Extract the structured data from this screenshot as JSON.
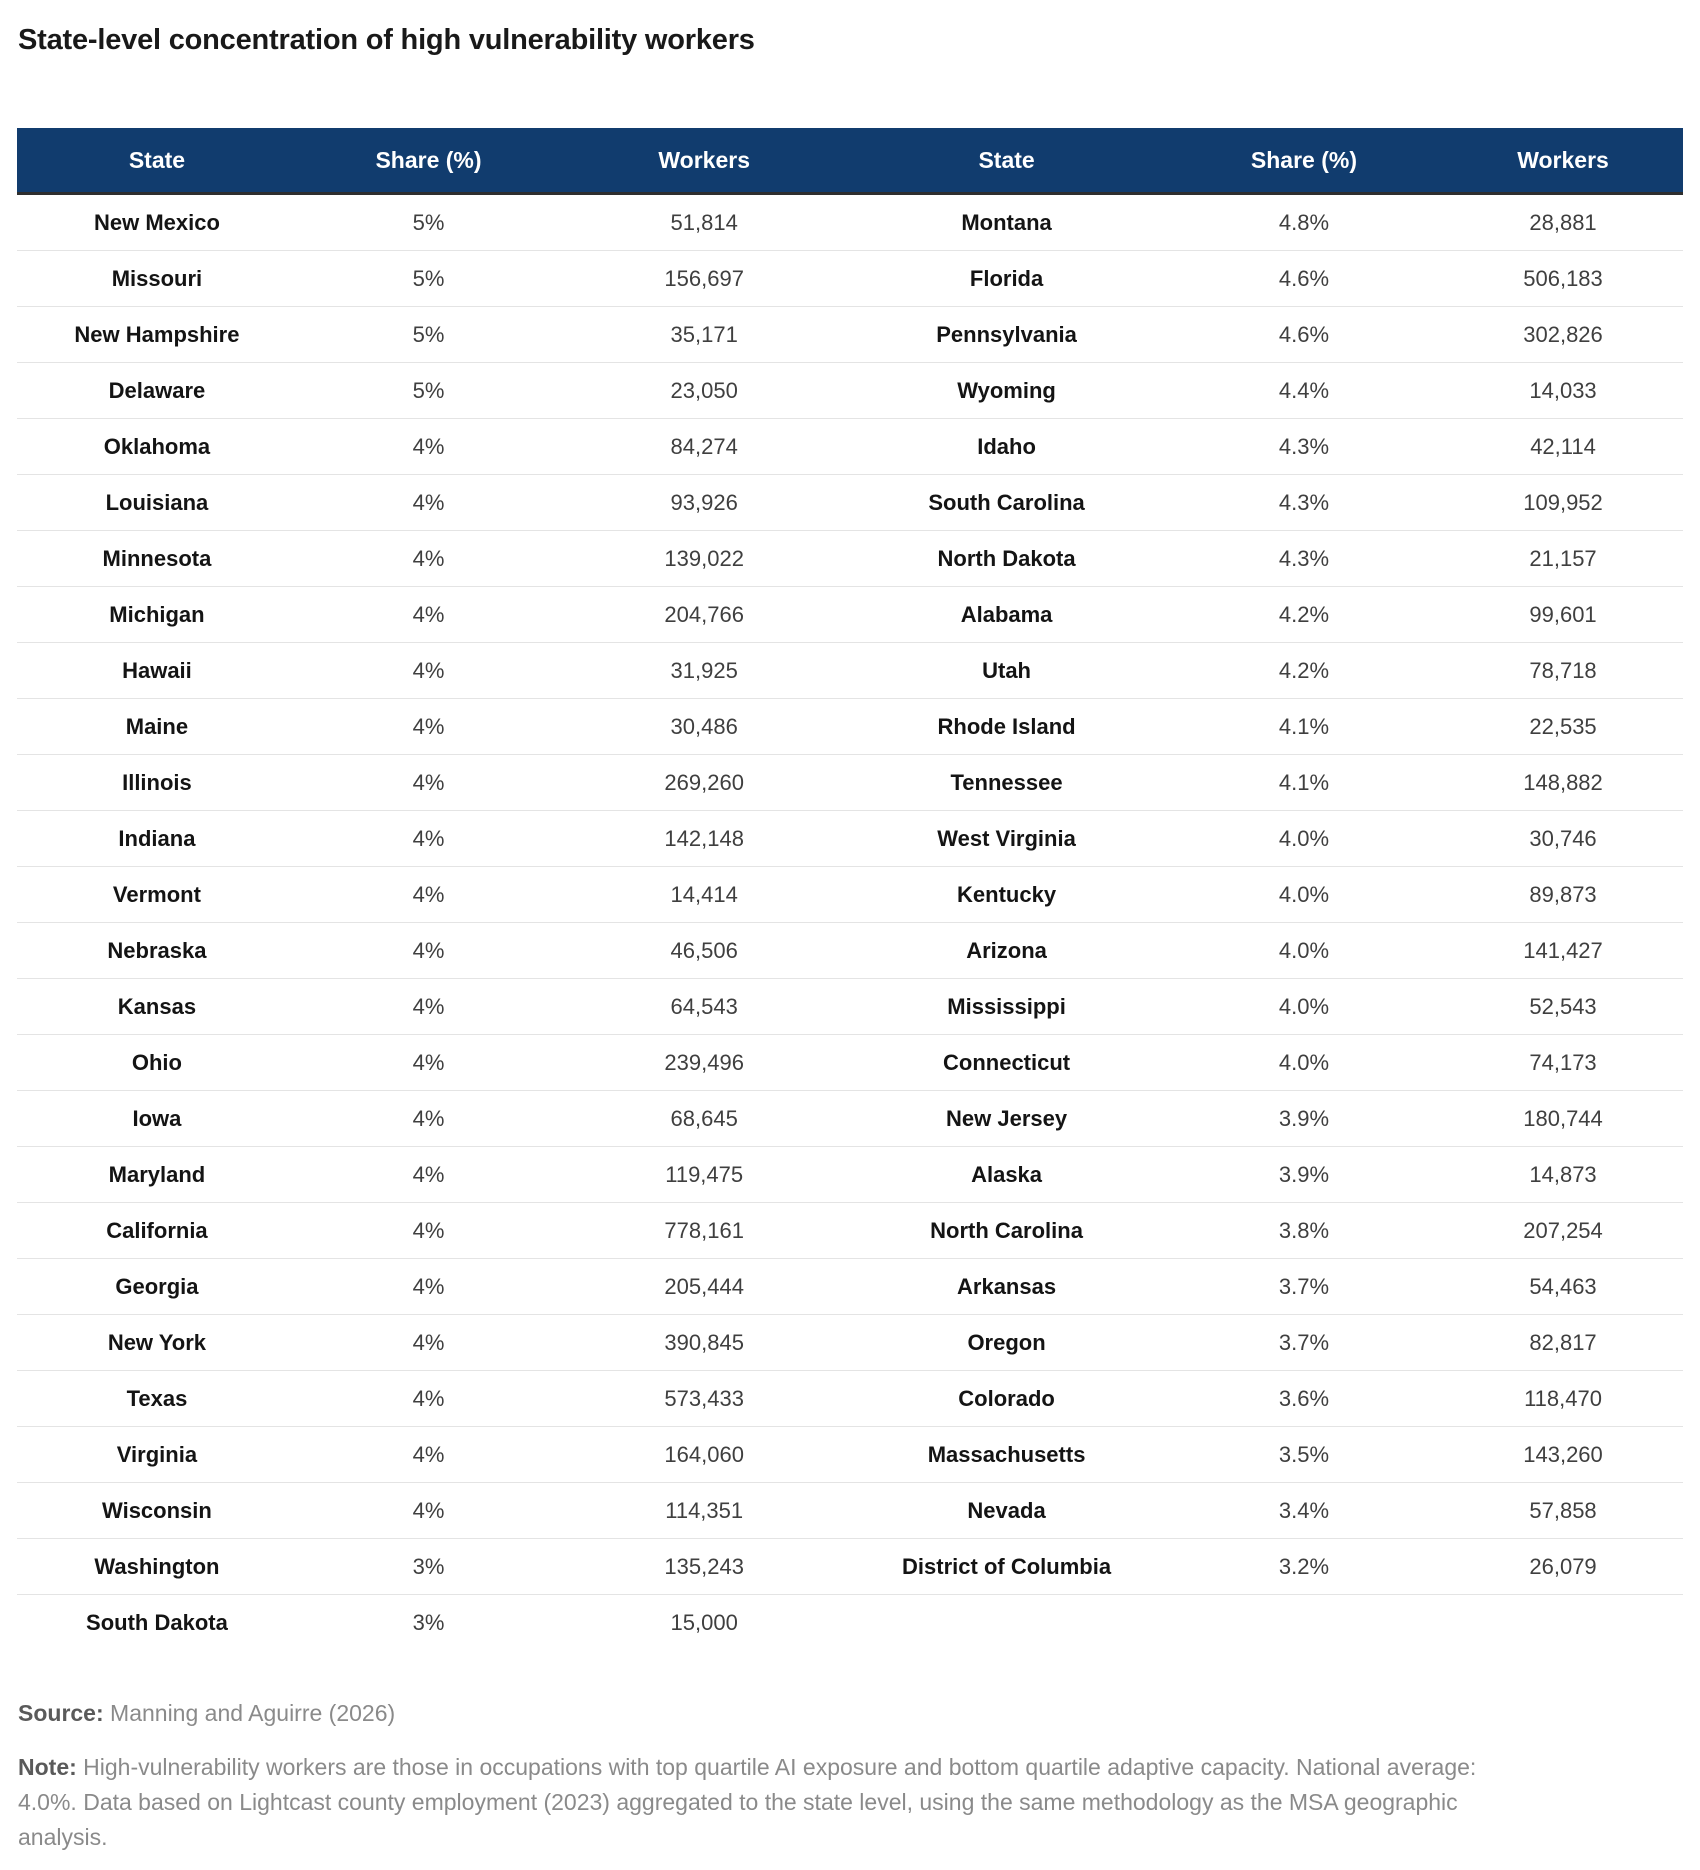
{
  "title": "State-level concentration of high vulnerability workers",
  "chart_data": {
    "type": "table",
    "title": "State-level concentration of high vulnerability workers",
    "columns": [
      "State",
      "Share (%)",
      "Workers",
      "State",
      "Share (%)",
      "Workers"
    ],
    "rows": [
      [
        "New Mexico",
        "5%",
        "51,814",
        "Montana",
        "4.8%",
        "28,881"
      ],
      [
        "Missouri",
        "5%",
        "156,697",
        "Florida",
        "4.6%",
        "506,183"
      ],
      [
        "New Hampshire",
        "5%",
        "35,171",
        "Pennsylvania",
        "4.6%",
        "302,826"
      ],
      [
        "Delaware",
        "5%",
        "23,050",
        "Wyoming",
        "4.4%",
        "14,033"
      ],
      [
        "Oklahoma",
        "4%",
        "84,274",
        "Idaho",
        "4.3%",
        "42,114"
      ],
      [
        "Louisiana",
        "4%",
        "93,926",
        "South Carolina",
        "4.3%",
        "109,952"
      ],
      [
        "Minnesota",
        "4%",
        "139,022",
        "North Dakota",
        "4.3%",
        "21,157"
      ],
      [
        "Michigan",
        "4%",
        "204,766",
        "Alabama",
        "4.2%",
        "99,601"
      ],
      [
        "Hawaii",
        "4%",
        "31,925",
        "Utah",
        "4.2%",
        "78,718"
      ],
      [
        "Maine",
        "4%",
        "30,486",
        "Rhode Island",
        "4.1%",
        "22,535"
      ],
      [
        "Illinois",
        "4%",
        "269,260",
        "Tennessee",
        "4.1%",
        "148,882"
      ],
      [
        "Indiana",
        "4%",
        "142,148",
        "West Virginia",
        "4.0%",
        "30,746"
      ],
      [
        "Vermont",
        "4%",
        "14,414",
        "Kentucky",
        "4.0%",
        "89,873"
      ],
      [
        "Nebraska",
        "4%",
        "46,506",
        "Arizona",
        "4.0%",
        "141,427"
      ],
      [
        "Kansas",
        "4%",
        "64,543",
        "Mississippi",
        "4.0%",
        "52,543"
      ],
      [
        "Ohio",
        "4%",
        "239,496",
        "Connecticut",
        "4.0%",
        "74,173"
      ],
      [
        "Iowa",
        "4%",
        "68,645",
        "New Jersey",
        "3.9%",
        "180,744"
      ],
      [
        "Maryland",
        "4%",
        "119,475",
        "Alaska",
        "3.9%",
        "14,873"
      ],
      [
        "California",
        "4%",
        "778,161",
        "North Carolina",
        "3.8%",
        "207,254"
      ],
      [
        "Georgia",
        "4%",
        "205,444",
        "Arkansas",
        "3.7%",
        "54,463"
      ],
      [
        "New York",
        "4%",
        "390,845",
        "Oregon",
        "3.7%",
        "82,817"
      ],
      [
        "Texas",
        "4%",
        "573,433",
        "Colorado",
        "3.6%",
        "118,470"
      ],
      [
        "Virginia",
        "4%",
        "164,060",
        "Massachusetts",
        "3.5%",
        "143,260"
      ],
      [
        "Wisconsin",
        "4%",
        "114,351",
        "Nevada",
        "3.4%",
        "57,858"
      ],
      [
        "Washington",
        "3%",
        "135,243",
        "District of Columbia",
        "3.2%",
        "26,079"
      ],
      [
        "South Dakota",
        "3%",
        "15,000",
        "",
        "",
        ""
      ]
    ],
    "layout_hints": {
      "grid": "horizontal-row-dividers",
      "header_position": "top",
      "two_column_groups": true,
      "column_width_percents": [
        16.8,
        15.8,
        17.3,
        19.0,
        16.7,
        14.4
      ]
    }
  },
  "footer": {
    "source_label": "Source:",
    "source_text": " Manning and Aguirre (2026)",
    "note_label": "Note:",
    "note_text": " High-vulnerability workers are those in occupations with top quartile AI exposure and bottom quartile adaptive capacity. National average: 4.0%. Data based on Lightcast county employment (2023) aggregated to the state level, using the same methodology as the MSA geographic analysis."
  },
  "colors": {
    "header_bg": "#113c6e",
    "header_text": "#ffffff",
    "header_divider": "#2e2e2e",
    "row_divider": "#e4e4e4",
    "state_text": "#141414",
    "value_text": "#3f3f3f",
    "title_text": "#191919",
    "note_text": "#8a8a8a",
    "note_label_text": "#5a5a5a",
    "page_bg": "#ffffff"
  }
}
